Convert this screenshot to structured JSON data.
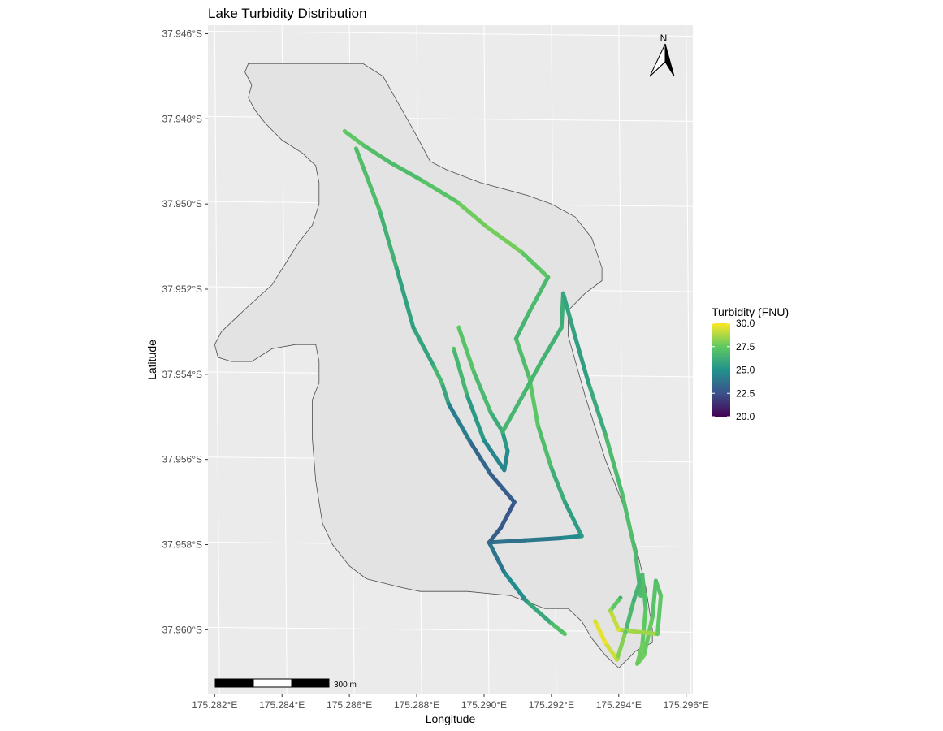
{
  "chart_data": {
    "type": "map",
    "title": "Lake Turbidity Distribution",
    "xlabel": "Longitude",
    "ylabel": "Latitude",
    "x_ticks": [
      "175.282°E",
      "175.284°E",
      "175.286°E",
      "175.288°E",
      "175.290°E",
      "175.292°E",
      "175.294°E",
      "175.296°E"
    ],
    "y_ticks": [
      "37.946°S",
      "37.948°S",
      "37.950°S",
      "37.952°S",
      "37.954°S",
      "37.956°S",
      "37.958°S",
      "37.960°S"
    ],
    "xlim": [
      175.2818,
      175.2962
    ],
    "ylim": [
      -37.9615,
      -37.9458
    ],
    "grid": true,
    "legend": {
      "title": "Turbidity (FNU)",
      "position": "right",
      "min": 20.0,
      "max": 30.0,
      "labels": [
        "30.0",
        "27.5",
        "25.0",
        "22.5",
        "20.0"
      ],
      "palette": [
        "#440154",
        "#3b528b",
        "#21918c",
        "#5ec962",
        "#fde725"
      ]
    },
    "north_arrow": "N",
    "scale_bar": {
      "label": "300 m",
      "segments": 3
    },
    "lake_outline": [
      [
        175.2856,
        -37.9467
      ],
      [
        175.2864,
        -37.9467
      ],
      [
        175.287,
        -37.947
      ],
      [
        175.2875,
        -37.9477
      ],
      [
        175.288,
        -37.9484
      ],
      [
        175.2884,
        -37.949
      ],
      [
        175.2889,
        -37.9492
      ],
      [
        175.2899,
        -37.9495
      ],
      [
        175.2913,
        -37.9498
      ],
      [
        175.292,
        -37.95
      ],
      [
        175.2927,
        -37.9503
      ],
      [
        175.2932,
        -37.9508
      ],
      [
        175.2935,
        -37.9515
      ],
      [
        175.2935,
        -37.9518
      ],
      [
        175.293,
        -37.9521
      ],
      [
        175.2925,
        -37.9525
      ],
      [
        175.2925,
        -37.9531
      ],
      [
        175.293,
        -37.9545
      ],
      [
        175.2936,
        -37.956
      ],
      [
        175.2941,
        -37.957
      ],
      [
        175.2945,
        -37.958
      ],
      [
        175.2948,
        -37.959
      ],
      [
        175.295,
        -37.96
      ],
      [
        175.295,
        -37.9603
      ],
      [
        175.2945,
        -37.9605
      ],
      [
        175.294,
        -37.9609
      ],
      [
        175.2936,
        -37.9606
      ],
      [
        175.2932,
        -37.9602
      ],
      [
        175.2929,
        -37.9598
      ],
      [
        175.2925,
        -37.9595
      ],
      [
        175.2918,
        -37.9595
      ],
      [
        175.2908,
        -37.9592
      ],
      [
        175.2895,
        -37.9591
      ],
      [
        175.2881,
        -37.9591
      ],
      [
        175.2875,
        -37.959
      ],
      [
        175.2865,
        -37.9588
      ],
      [
        175.286,
        -37.9585
      ],
      [
        175.2855,
        -37.958
      ],
      [
        175.2852,
        -37.9575
      ],
      [
        175.2851,
        -37.957
      ],
      [
        175.285,
        -37.9565
      ],
      [
        175.2849,
        -37.9555
      ],
      [
        175.2849,
        -37.9546
      ],
      [
        175.2851,
        -37.9542
      ],
      [
        175.2851,
        -37.9537
      ],
      [
        175.285,
        -37.9533
      ],
      [
        175.2844,
        -37.9533
      ],
      [
        175.2837,
        -37.9534
      ],
      [
        175.2831,
        -37.9537
      ],
      [
        175.2825,
        -37.9537
      ],
      [
        175.2821,
        -37.9536
      ],
      [
        175.282,
        -37.9533
      ],
      [
        175.2822,
        -37.953
      ],
      [
        175.283,
        -37.9524
      ],
      [
        175.2837,
        -37.9519
      ],
      [
        175.2841,
        -37.9514
      ],
      [
        175.2845,
        -37.9509
      ],
      [
        175.2849,
        -37.9505
      ],
      [
        175.2851,
        -37.95
      ],
      [
        175.2851,
        -37.9495
      ],
      [
        175.285,
        -37.9491
      ],
      [
        175.2846,
        -37.9488
      ],
      [
        175.284,
        -37.9485
      ],
      [
        175.2835,
        -37.9481
      ],
      [
        175.2832,
        -37.9478
      ],
      [
        175.283,
        -37.9475
      ],
      [
        175.2831,
        -37.9472
      ],
      [
        175.2829,
        -37.9469
      ],
      [
        175.283,
        -37.9467
      ],
      [
        175.284,
        -37.9467
      ]
    ],
    "transects": [
      {
        "points": [
          [
            175.28586,
            -37.94829,
            27.6
          ],
          [
            175.28644,
            -37.94863,
            27.2
          ],
          [
            175.2872,
            -37.94902,
            26.8
          ],
          [
            175.2881,
            -37.94942,
            27.0
          ],
          [
            175.2892,
            -37.94995,
            27.5
          ],
          [
            175.2901,
            -37.95055,
            28.0
          ],
          [
            175.2911,
            -37.95112,
            27.7
          ],
          [
            175.2919,
            -37.95172,
            27.0
          ],
          [
            175.2913,
            -37.9526,
            26.6
          ],
          [
            175.29095,
            -37.95316,
            26.5
          ],
          [
            175.29135,
            -37.9541,
            27.4
          ],
          [
            175.2916,
            -37.9552,
            27.3
          ],
          [
            175.292,
            -37.9562,
            26.6
          ],
          [
            175.2924,
            -37.957,
            25.8
          ],
          [
            175.2929,
            -37.9578,
            25.3
          ],
          [
            175.29225,
            -37.95785,
            24.2
          ],
          [
            175.2912,
            -37.9579,
            23.8
          ],
          [
            175.29015,
            -37.95795,
            23.6
          ],
          [
            175.2906,
            -37.95865,
            24.2
          ],
          [
            175.29125,
            -37.95932,
            25.4
          ],
          [
            175.292,
            -37.95985,
            26.6
          ],
          [
            175.2924,
            -37.9601,
            27.4
          ]
        ]
      },
      {
        "points": [
          [
            175.2862,
            -37.9487,
            27.0
          ],
          [
            175.2869,
            -37.95015,
            26.9
          ],
          [
            175.2874,
            -37.9515,
            26.0
          ],
          [
            175.2879,
            -37.9529,
            25.4
          ],
          [
            175.2885,
            -37.9538,
            26.2
          ],
          [
            175.28875,
            -37.9542,
            27.0
          ],
          [
            175.28895,
            -37.9547,
            24.8
          ],
          [
            175.2896,
            -37.9556,
            23.6
          ],
          [
            175.2902,
            -37.95635,
            23.0
          ],
          [
            175.2909,
            -37.957,
            22.9
          ],
          [
            175.2905,
            -37.9576,
            22.6
          ],
          [
            175.29015,
            -37.95795,
            23.4
          ]
        ]
      },
      {
        "points": [
          [
            175.28925,
            -37.9529,
            27.4
          ],
          [
            175.2897,
            -37.95395,
            27.1
          ],
          [
            175.2902,
            -37.9549,
            26.5
          ],
          [
            175.29055,
            -37.95535,
            25.8
          ],
          [
            175.2907,
            -37.9558,
            25.0
          ],
          [
            175.2906,
            -37.95625,
            24.4
          ],
          [
            175.29,
            -37.95555,
            24.8
          ],
          [
            175.2895,
            -37.9545,
            26.0
          ],
          [
            175.2891,
            -37.9534,
            27.2
          ]
        ]
      },
      {
        "points": [
          [
            175.29055,
            -37.95535,
            26.4
          ],
          [
            175.29115,
            -37.9545,
            26.8
          ],
          [
            175.2917,
            -37.9537,
            26.5
          ],
          [
            175.2923,
            -37.9529,
            26.4
          ],
          [
            175.29235,
            -37.9521,
            26.0
          ],
          [
            175.2927,
            -37.9531,
            25.6
          ],
          [
            175.2931,
            -37.9542,
            25.6
          ],
          [
            175.2936,
            -37.9554,
            26.6
          ],
          [
            175.2941,
            -37.9568,
            27.1
          ],
          [
            175.2945,
            -37.9582,
            26.8
          ],
          [
            175.29465,
            -37.9592,
            26.9
          ]
        ]
      },
      {
        "points": [
          [
            175.2933,
            -37.9598,
            29.4
          ],
          [
            175.2936,
            -37.9603,
            29.8
          ],
          [
            175.29395,
            -37.9607,
            28.8
          ],
          [
            175.2942,
            -37.96005,
            27.4
          ],
          [
            175.29445,
            -37.9593,
            26.2
          ],
          [
            175.2947,
            -37.9587,
            26.8
          ],
          [
            175.2948,
            -37.9595,
            27.2
          ],
          [
            175.2947,
            -37.96035,
            27.8
          ],
          [
            175.29455,
            -37.9608,
            27.6
          ],
          [
            175.29475,
            -37.9606,
            27.8
          ],
          [
            175.295,
            -37.9597,
            27.4
          ],
          [
            175.2951,
            -37.95885,
            27.0
          ],
          [
            175.29525,
            -37.9592,
            27.4
          ],
          [
            175.29515,
            -37.9601,
            27.6
          ],
          [
            175.294,
            -37.96,
            29.5
          ],
          [
            175.29375,
            -37.95955,
            28.6
          ],
          [
            175.29405,
            -37.95925,
            26.4
          ]
        ]
      }
    ]
  }
}
